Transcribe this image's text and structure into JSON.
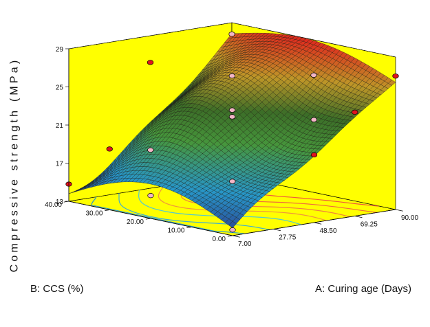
{
  "chart_data": {
    "type": "surface-3d",
    "zlabel": "Compressive strength (MPa)",
    "xlabel": "A: Curing age (Days)",
    "ylabel": "B: CCS (%)",
    "x_ticks": [
      "7.00",
      "27.75",
      "48.50",
      "69.25",
      "90.00"
    ],
    "y_ticks": [
      "0.00",
      "10.00",
      "20.00",
      "30.00",
      "40.00"
    ],
    "z_ticks": [
      "13",
      "17",
      "21",
      "25",
      "29"
    ],
    "xlim": [
      7,
      90
    ],
    "ylim": [
      0,
      40
    ],
    "zlim": [
      13,
      29
    ],
    "colors": {
      "walls": "#ffff00",
      "low": "#2b3a8c",
      "mid": "#4f9a3a",
      "high": "#e0281e",
      "design_point_red": "#e0141e",
      "design_point_pink": "#f3b6c6"
    },
    "design_points": [
      {
        "x": 7,
        "y": 40,
        "z": 14.8
      },
      {
        "x": 7,
        "y": 0,
        "z": 13.6
      },
      {
        "x": 90,
        "y": 0,
        "z": 27.0
      },
      {
        "x": 90,
        "y": 40,
        "z": 27.8
      },
      {
        "x": 27.75,
        "y": 30,
        "z": 18.6
      },
      {
        "x": 27.75,
        "y": 10,
        "z": 17.1
      },
      {
        "x": 48.5,
        "y": 20,
        "z": 23.0
      },
      {
        "x": 48.5,
        "y": 20,
        "z": 22.3
      },
      {
        "x": 69.25,
        "y": 30,
        "z": 25.0
      },
      {
        "x": 69.25,
        "y": 10,
        "z": 22.2
      },
      {
        "x": 48.5,
        "y": 40,
        "z": 26.2
      },
      {
        "x": 48.5,
        "y": 0,
        "z": 20.1
      },
      {
        "x": 7,
        "y": 20,
        "z": 15.4
      },
      {
        "x": 90,
        "y": 20,
        "z": 25.3
      },
      {
        "x": 27.75,
        "y": 40,
        "z": 17.8
      },
      {
        "x": 69.25,
        "y": 0,
        "z": 23.9
      }
    ]
  }
}
